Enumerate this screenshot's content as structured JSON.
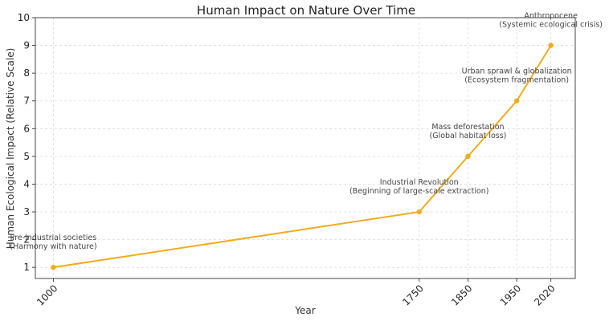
{
  "chart_data": {
    "type": "line",
    "title": "Human Impact on Nature Over Time",
    "xlabel": "Year",
    "ylabel": "Human Ecological Impact (Relative Scale)",
    "x": [
      1000,
      1750,
      1850,
      1950,
      2020
    ],
    "xticks": [
      "1000",
      "1750",
      "1850",
      "1950",
      "2020"
    ],
    "y": [
      1,
      3,
      5,
      7,
      9
    ],
    "yticks": [
      "1",
      "2",
      "3",
      "4",
      "5",
      "6",
      "7",
      "8",
      "9",
      "10"
    ],
    "xlim": [
      963,
      2070
    ],
    "ylim": [
      0.6,
      10
    ],
    "grid": true,
    "line_color": "#f0ac1c",
    "annotations": [
      {
        "x": 1000,
        "y": 1,
        "lines": [
          "Pre-industrial societies",
          "(Harmony with nature)"
        ]
      },
      {
        "x": 1750,
        "y": 3,
        "lines": [
          "Industrial Revolution",
          "(Beginning of large-scale extraction)"
        ]
      },
      {
        "x": 1850,
        "y": 5,
        "lines": [
          "Mass deforestation",
          "(Global habitat loss)"
        ]
      },
      {
        "x": 1950,
        "y": 7,
        "lines": [
          "Urban sprawl & globalization",
          "(Ecosystem fragmentation)"
        ]
      },
      {
        "x": 2020,
        "y": 9,
        "lines": [
          "Anthropocene",
          "(Systemic ecological crisis)"
        ]
      }
    ]
  }
}
